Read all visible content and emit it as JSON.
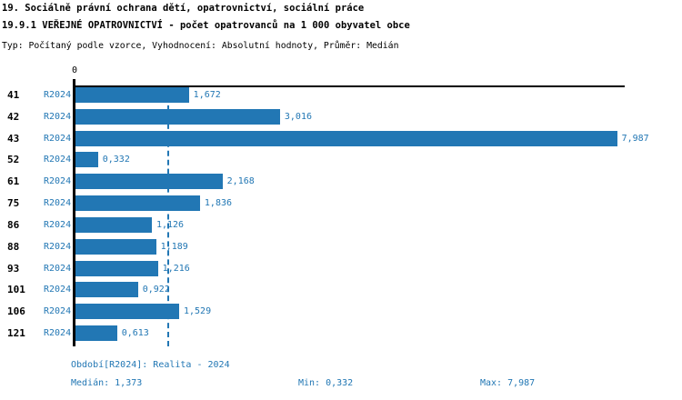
{
  "header": {
    "title_line1": "19. Sociálně právní ochrana dětí, opatrovnictví, sociální práce",
    "title_line2": "19.9.1 VEŘEJNÉ OPATROVNICTVÍ - počet opatrovanců na 1 000 obyvatel obce",
    "meta_line": "Typ: Počítaný podle vzorce, Vyhodnocení: Absolutní hodnoty, Průměr: Medián"
  },
  "chart_data": {
    "type": "bar",
    "orientation": "horizontal",
    "title": "19.9.1 VEŘEJNÉ OPATROVNICTVÍ - počet opatrovanců na 1 000 obyvatel obce",
    "categories": [
      "41",
      "42",
      "43",
      "52",
      "61",
      "75",
      "86",
      "88",
      "93",
      "101",
      "106",
      "121"
    ],
    "series_label": "R2024",
    "values": [
      1.672,
      3.016,
      7.987,
      0.332,
      2.168,
      1.836,
      1.126,
      1.189,
      1.216,
      0.922,
      1.529,
      0.613
    ],
    "value_labels": [
      "1,672",
      "3,016",
      "7,987",
      "0,332",
      "2,168",
      "1,836",
      "1,126",
      "1,189",
      "1,216",
      "0,922",
      "1,529",
      "0,613"
    ],
    "xlim": [
      0,
      8.1
    ],
    "x_tick_labels": [
      "0"
    ],
    "median_line_value": 1.373,
    "bar_color": "#2277b4",
    "grid": false,
    "legend": "none"
  },
  "footer": {
    "period_label": "Období[R2024]: Realita - 2024",
    "median_label": "Medián: 1,373",
    "min_label": "Min: 0,332",
    "max_label": "Max: 7,987"
  }
}
